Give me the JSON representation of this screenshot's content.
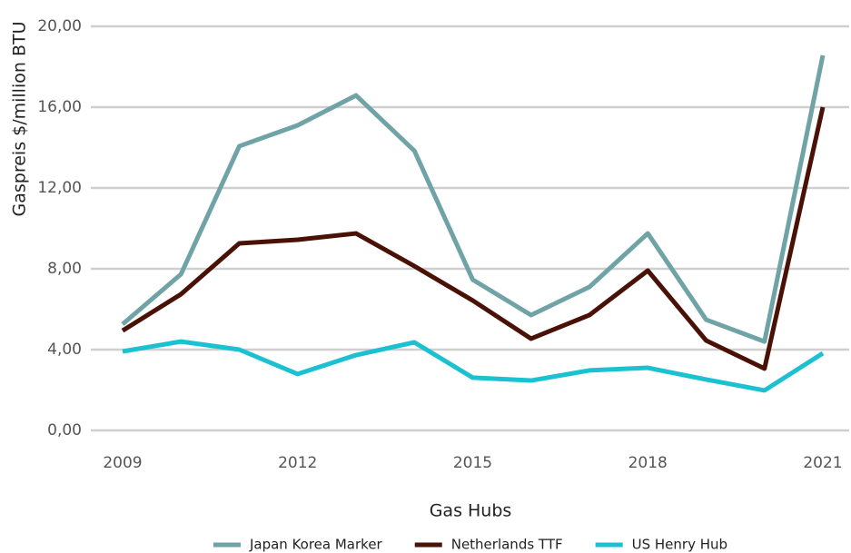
{
  "chart_data": {
    "type": "line",
    "x": [
      2009,
      2010,
      2011,
      2012,
      2013,
      2014,
      2015,
      2016,
      2017,
      2018,
      2019,
      2020,
      2021
    ],
    "xlim": [
      2009,
      2021
    ],
    "xticks": [
      2009,
      2012,
      2015,
      2018,
      2021
    ],
    "ylim": [
      0,
      20
    ],
    "yticks": [
      {
        "value": 0,
        "label": "0,00"
      },
      {
        "value": 4,
        "label": "4,00"
      },
      {
        "value": 8,
        "label": "8,00"
      },
      {
        "value": 12,
        "label": "12,00"
      },
      {
        "value": 16,
        "label": "16,00"
      },
      {
        "value": 20,
        "label": "20,00"
      }
    ],
    "xlabel": "Gas Hubs",
    "ylabel": "Gaspreis $/million BTU",
    "grid": true,
    "legend": "bottom",
    "series": [
      {
        "name": "Japan Korea Marker",
        "color": "#6fa3a6",
        "values": [
          5.26,
          7.73,
          14.07,
          15.1,
          16.58,
          13.84,
          7.46,
          5.71,
          7.1,
          9.75,
          5.48,
          4.4,
          18.56
        ]
      },
      {
        "name": "Netherlands TTF",
        "color": "#4a1106",
        "values": [
          4.94,
          6.74,
          9.26,
          9.44,
          9.75,
          8.13,
          6.43,
          4.54,
          5.71,
          7.91,
          4.45,
          3.06,
          16.0
        ]
      },
      {
        "name": "US Henry Hub",
        "color": "#1cc1d1",
        "values": [
          3.91,
          4.4,
          4.0,
          2.79,
          3.73,
          4.36,
          2.61,
          2.47,
          2.97,
          3.1,
          2.52,
          1.98,
          3.82
        ]
      }
    ]
  }
}
